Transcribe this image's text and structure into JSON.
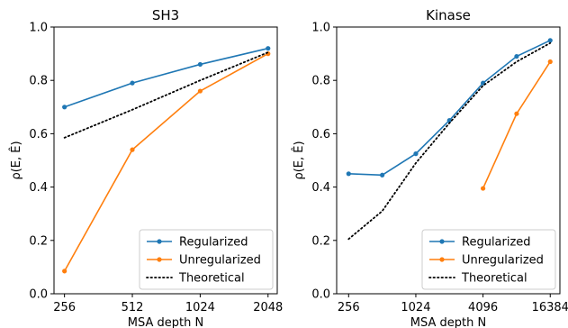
{
  "figure": {
    "background": "#ffffff"
  },
  "chart_data": [
    {
      "type": "line",
      "title": "SH3",
      "xlabel": "MSA depth N",
      "ylabel": "ρ(E, Ê)",
      "x_scale": "log2",
      "x_ticks": [
        256,
        512,
        1024,
        2048
      ],
      "x_tick_labels": [
        "256",
        "512",
        "1024",
        "2048"
      ],
      "xlim": [
        230,
        2250
      ],
      "ylim": [
        0.0,
        1.0
      ],
      "y_ticks": [
        0.0,
        0.2,
        0.4,
        0.6,
        0.8,
        1.0
      ],
      "y_tick_labels": [
        "0.0",
        "0.2",
        "0.4",
        "0.6",
        "0.8",
        "1.0"
      ],
      "grid": false,
      "legend": {
        "position": "bottom-right",
        "entries": [
          "Regularized",
          "Unregularized",
          "Theoretical"
        ]
      },
      "series": [
        {
          "name": "Regularized",
          "color": "#1f77b4",
          "style": "solid-markers",
          "x": [
            256,
            512,
            1024,
            2048
          ],
          "values": [
            0.7,
            0.79,
            0.86,
            0.92
          ]
        },
        {
          "name": "Unregularized",
          "color": "#ff7f0e",
          "style": "solid-markers",
          "x": [
            256,
            512,
            1024,
            2048
          ],
          "values": [
            0.085,
            0.54,
            0.76,
            0.9
          ]
        },
        {
          "name": "Theoretical",
          "color": "#000000",
          "style": "dotted",
          "x": [
            256,
            512,
            1024,
            2048
          ],
          "values": [
            0.585,
            0.69,
            0.8,
            0.905
          ]
        }
      ]
    },
    {
      "type": "line",
      "title": "Kinase",
      "xlabel": "MSA depth N",
      "ylabel": "ρ(E, Ê)",
      "x_scale": "log2",
      "x_ticks": [
        256,
        1024,
        4096,
        16384
      ],
      "x_tick_labels": [
        "256",
        "1024",
        "4096",
        "16384"
      ],
      "xlim": [
        200,
        20000
      ],
      "ylim": [
        0.0,
        1.0
      ],
      "y_ticks": [
        0.0,
        0.2,
        0.4,
        0.6,
        0.8,
        1.0
      ],
      "y_tick_labels": [
        "0.0",
        "0.2",
        "0.4",
        "0.6",
        "0.8",
        "1.0"
      ],
      "grid": false,
      "legend": {
        "position": "bottom-right",
        "entries": [
          "Regularized",
          "Unregularized",
          "Theoretical"
        ]
      },
      "series": [
        {
          "name": "Regularized",
          "color": "#1f77b4",
          "style": "solid-markers",
          "x": [
            256,
            512,
            1024,
            2048,
            4096,
            8192,
            16384
          ],
          "values": [
            0.45,
            0.445,
            0.525,
            0.65,
            0.79,
            0.89,
            0.95
          ]
        },
        {
          "name": "Unregularized",
          "color": "#ff7f0e",
          "style": "solid-markers",
          "x": [
            4096,
            8192,
            16384
          ],
          "values": [
            0.395,
            0.675,
            0.87
          ]
        },
        {
          "name": "Theoretical",
          "color": "#000000",
          "style": "dotted",
          "x": [
            256,
            512,
            1024,
            2048,
            4096,
            8192,
            16384
          ],
          "values": [
            0.205,
            0.31,
            0.49,
            0.64,
            0.78,
            0.87,
            0.94
          ]
        }
      ]
    }
  ]
}
